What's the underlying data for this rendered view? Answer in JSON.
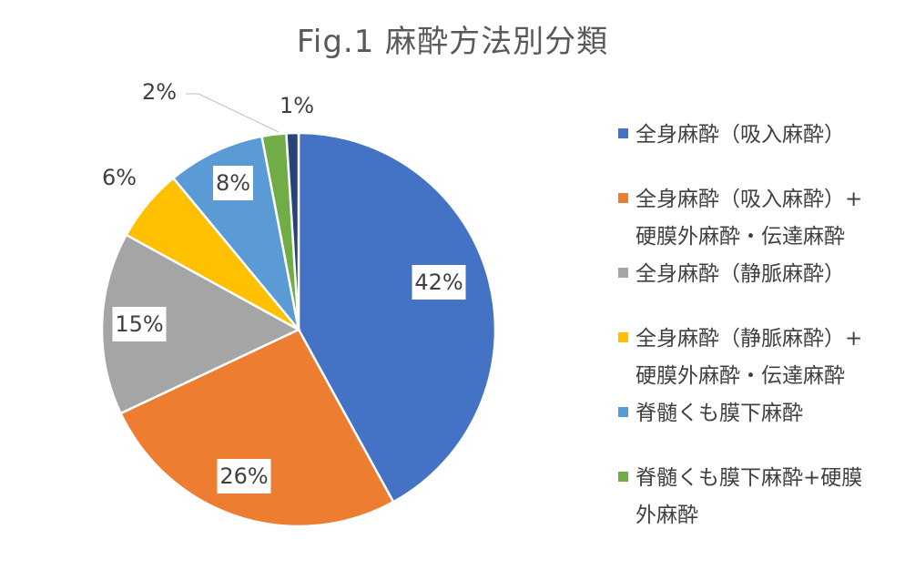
{
  "chart_data": {
    "type": "pie",
    "title": "Fig.1 麻酔方法別分類",
    "legend_position": "right",
    "slices": [
      {
        "label_lines": [
          "全身麻酔（吸入麻酔）"
        ],
        "value": 42,
        "display": "42%",
        "color": "#4472C4"
      },
      {
        "label_lines": [
          "全身麻酔（吸入麻酔）+",
          "硬膜外麻酔・伝達麻酔"
        ],
        "value": 26,
        "display": "26%",
        "color": "#ED7D31"
      },
      {
        "label_lines": [
          "全身麻酔（静脈麻酔）"
        ],
        "value": 15,
        "display": "15%",
        "color": "#A5A5A5"
      },
      {
        "label_lines": [
          "全身麻酔（静脈麻酔）+",
          "硬膜外麻酔・伝達麻酔"
        ],
        "value": 6,
        "display": "6%",
        "color": "#FFC000"
      },
      {
        "label_lines": [
          "脊髄くも膜下麻酔"
        ],
        "value": 8,
        "display": "8%",
        "color": "#5B9BD5"
      },
      {
        "label_lines": [
          "脊髄くも膜下麻酔+硬膜",
          "外麻酔"
        ],
        "value": 2,
        "display": "2%",
        "color": "#70AD47"
      },
      {
        "label_lines": [],
        "value": 1,
        "display": "1%",
        "color": "#264478"
      }
    ]
  }
}
